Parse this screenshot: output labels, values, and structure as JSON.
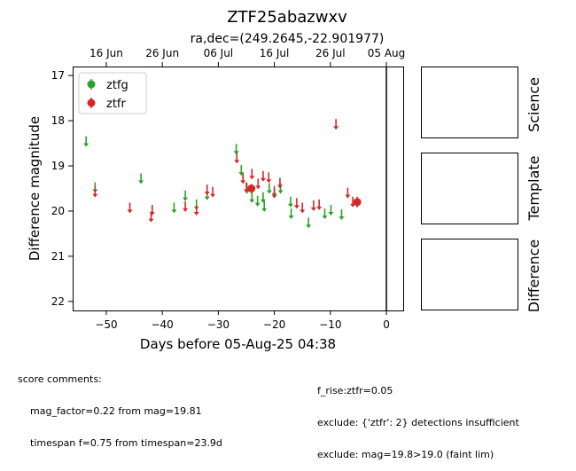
{
  "chart_data": {
    "type": "scatter",
    "title": "ZTF25abazwxv",
    "subtitle": "ra,dec=(249.2645,-22.901977)",
    "xlabel": "Days before 05-Aug-25 04:38",
    "ylabel": "Difference magnitude",
    "xlim": [
      -56,
      3
    ],
    "ylim": [
      22.2,
      16.8
    ],
    "inverted_y": true,
    "grid": false,
    "legend_position": "top-left",
    "x_ticks": [
      -50,
      -40,
      -30,
      -20,
      -10,
      0
    ],
    "x_tick_labels": [
      "−50",
      "−40",
      "−30",
      "−20",
      "−10",
      "0"
    ],
    "y_ticks": [
      17,
      18,
      19,
      20,
      21,
      22
    ],
    "y_tick_labels": [
      "17",
      "18",
      "19",
      "20",
      "21",
      "22"
    ],
    "top_axis_ticks": [
      -50,
      -40,
      -30,
      -20,
      -10,
      0
    ],
    "top_axis_labels": [
      "16 Jun",
      "26 Jun",
      "06 Jul",
      "16 Jul",
      "26 Jul",
      "05 Aug"
    ],
    "vertical_line_x": 0,
    "series": [
      {
        "name": "ztfg",
        "color": "#2ca02c",
        "upper_limits": [
          [
            -53.6,
            18.48
          ],
          [
            -52.0,
            19.5
          ],
          [
            -43.8,
            19.3
          ],
          [
            -37.9,
            19.95
          ],
          [
            -35.9,
            19.68
          ],
          [
            -33.9,
            19.88
          ],
          [
            -32.0,
            19.66
          ],
          [
            -26.8,
            18.65
          ],
          [
            -25.9,
            19.12
          ],
          [
            -24.9,
            19.52
          ],
          [
            -24.0,
            19.72
          ],
          [
            -23.0,
            19.8
          ],
          [
            -22.0,
            19.72
          ],
          [
            -21.8,
            19.92
          ],
          [
            -20.9,
            19.52
          ],
          [
            -20.0,
            19.58
          ],
          [
            -18.9,
            19.52
          ],
          [
            -17.1,
            19.82
          ],
          [
            -17.0,
            20.08
          ],
          [
            -13.9,
            20.28
          ],
          [
            -11.0,
            20.08
          ],
          [
            -9.9,
            20.0
          ],
          [
            -8.0,
            20.1
          ]
        ],
        "detections": []
      },
      {
        "name": "ztfr",
        "color": "#d62728",
        "upper_limits": [
          [
            -52.0,
            19.6
          ],
          [
            -45.8,
            19.95
          ],
          [
            -42.0,
            20.15
          ],
          [
            -41.8,
            20.0
          ],
          [
            -35.9,
            19.92
          ],
          [
            -33.9,
            20.0
          ],
          [
            -32.0,
            19.55
          ],
          [
            -31.0,
            19.6
          ],
          [
            -26.7,
            18.85
          ],
          [
            -25.6,
            19.3
          ],
          [
            -25.0,
            19.5
          ],
          [
            -24.0,
            19.2
          ],
          [
            -22.9,
            19.42
          ],
          [
            -22.0,
            19.25
          ],
          [
            -21.0,
            19.28
          ],
          [
            -20.0,
            19.62
          ],
          [
            -19.0,
            19.4
          ],
          [
            -16.0,
            19.85
          ],
          [
            -15.0,
            19.95
          ],
          [
            -13.0,
            19.9
          ],
          [
            -12.0,
            19.88
          ],
          [
            -9.0,
            18.1
          ],
          [
            -6.9,
            19.62
          ],
          [
            -6.0,
            19.82
          ]
        ],
        "detections": [
          {
            "x": -24.1,
            "y": 19.5,
            "err": 0.1
          },
          {
            "x": -5.2,
            "y": 19.8,
            "err": 0.12
          }
        ]
      }
    ],
    "legend": [
      {
        "label": "ztfg",
        "color": "#2ca02c"
      },
      {
        "label": "ztfr",
        "color": "#d62728"
      }
    ]
  },
  "panels": [
    {
      "label": "Science"
    },
    {
      "label": "Template"
    },
    {
      "label": "Difference"
    }
  ],
  "score_comments": {
    "heading": "score comments:",
    "left": [
      "mag_factor=0.22 from mag=19.81",
      "timespan f=0.75 from timespan=23.9d"
    ],
    "right": [
      "f_rise:ztfr=0.05",
      "exclude: {'ztfr': 2} detections insufficient",
      "exclude: mag=19.8>19.0 (faint lim)"
    ]
  }
}
